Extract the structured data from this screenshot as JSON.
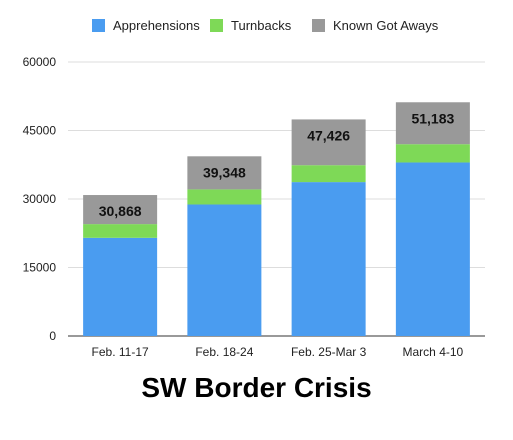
{
  "chart_data": {
    "type": "bar",
    "stacked": true,
    "title": "SW Border Crisis",
    "categories": [
      "Feb. 11-17",
      "Feb. 18-24",
      "Feb. 25-Mar 3",
      "March 4-10"
    ],
    "series": [
      {
        "name": "Apprehensions",
        "color": "#4a9cf0",
        "values": [
          21500,
          28800,
          33700,
          38000
        ]
      },
      {
        "name": "Turnbacks",
        "color": "#7ed957",
        "values": [
          3000,
          3300,
          3700,
          4000
        ]
      },
      {
        "name": "Known Got Aways",
        "color": "#999999",
        "values": [
          6368,
          7248,
          10026,
          9183
        ]
      }
    ],
    "totals": [
      "30,868",
      "39,348",
      "47,426",
      "51,183"
    ],
    "ylim": [
      0,
      60000
    ],
    "yticks": [
      0,
      15000,
      30000,
      45000,
      60000
    ],
    "ytick_labels": [
      "0",
      "15000",
      "30000",
      "45000",
      "60000"
    ],
    "xlabel": "",
    "ylabel": "",
    "grid": true,
    "legend_position": "top"
  }
}
